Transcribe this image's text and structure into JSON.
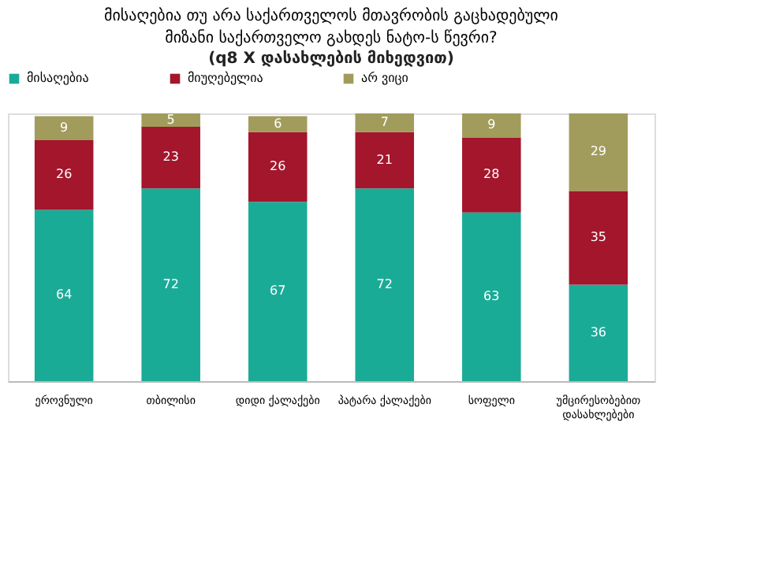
{
  "chart_data": {
    "type": "bar",
    "stacked": true,
    "data_labels": true,
    "legend": "top",
    "title": "მისაღებია თუ არა საქართველოს მთავრობის გაცხადებული მიზანი საქართველო გახდეს ნატო-ს წევრი?",
    "subtitle": "(q8 X დასახლების მიხედვით)",
    "categories": [
      "ეროვნული",
      "თბილისი",
      "დიდი ქალაქები",
      "პატარა ქალაქები",
      "სოფელი",
      "უმცირესობებით დასახლებები"
    ],
    "series": [
      {
        "name": "მისაღებია",
        "color": "#1aab97",
        "values": [
          64,
          72,
          67,
          72,
          63,
          36
        ]
      },
      {
        "name": "მიუღებელია",
        "color": "#a3162c",
        "values": [
          26,
          23,
          26,
          21,
          28,
          35
        ]
      },
      {
        "name": "არ ვიცი",
        "color": "#a19c5c",
        "values": [
          9,
          5,
          6,
          7,
          9,
          29
        ]
      }
    ]
  }
}
